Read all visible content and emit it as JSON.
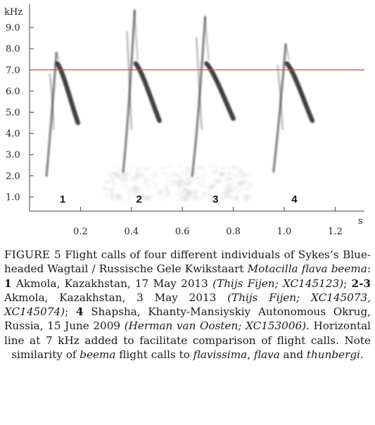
{
  "figure": {
    "y_unit": "kHz",
    "x_unit": "s",
    "y_ticks": [
      "9.0",
      "8.0",
      "7.0",
      "6.0",
      "5.0",
      "4.0",
      "3.0",
      "2.0",
      "1.0"
    ],
    "x_ticks": [
      "0.2",
      "0.4",
      "0.6",
      "0.8",
      "1.0",
      "1.2"
    ],
    "call_labels": [
      "1",
      "2",
      "3",
      "4"
    ],
    "reference_line_color": "#d63a2e",
    "spectrogram_color": "#1f1f1f"
  },
  "chart_data": {
    "type": "spectrogram",
    "xlabel": "s",
    "ylabel": "kHz",
    "xlim": [
      0.0,
      1.3
    ],
    "ylim": [
      0.0,
      10.0
    ],
    "x_ticks": [
      0.2,
      0.4,
      0.6,
      0.8,
      1.0,
      1.2
    ],
    "y_ticks": [
      1.0,
      2.0,
      3.0,
      4.0,
      5.0,
      6.0,
      7.0,
      8.0,
      9.0
    ],
    "reference_line_khz": 7.0,
    "calls": [
      {
        "label": "1",
        "start_s": 0.06,
        "end_s": 0.19,
        "peak_khz": 7.8,
        "end_khz": 4.5
      },
      {
        "label": "2",
        "start_s": 0.36,
        "end_s": 0.51,
        "peak_khz": 9.8,
        "end_khz": 4.6
      },
      {
        "label": "3",
        "start_s": 0.63,
        "end_s": 0.8,
        "peak_khz": 9.5,
        "end_khz": 4.7
      },
      {
        "label": "4",
        "start_s": 0.95,
        "end_s": 1.11,
        "peak_khz": 8.2,
        "end_khz": 4.6
      }
    ]
  },
  "caption": {
    "label": "FIGURE 5",
    "text_1": " Flight calls of four different individuals of Sykes’s Blue-headed Wagtail / Russische Gele Kwikstaart ",
    "species": "Motacilla flava beema",
    "text_2": ": ",
    "n1": "1",
    "text_3": " Akmola, Kazakhstan, 17 May 2013 ",
    "credit_1": "(Thijs Fijen; XC145123)",
    "text_4": "; ",
    "n2": "2-3",
    "text_5": " Akmola, Kazakhstan, 3 May 2013 ",
    "credit_2": "(Thijs Fijen; XC145073, XC145074)",
    "text_6": "; ",
    "n3": "4",
    "text_7": " Shapsha, Khanty-Mansiyskiy Autonomous Okrug, Russia, 15 June 2009 ",
    "credit_3": "(Herman van Oosten; XC153006)",
    "text_8": ". Horizontal line at 7 kHz added to facilitate comparison of flight calls. Note similarity of ",
    "sp_beema": "beema",
    "text_9": " flight calls to ",
    "sp_flavissima": "flavissima",
    "text_10": ", ",
    "sp_flava": "flava",
    "text_11": " and ",
    "sp_thunbergi": "thunbergi",
    "text_12": "."
  }
}
